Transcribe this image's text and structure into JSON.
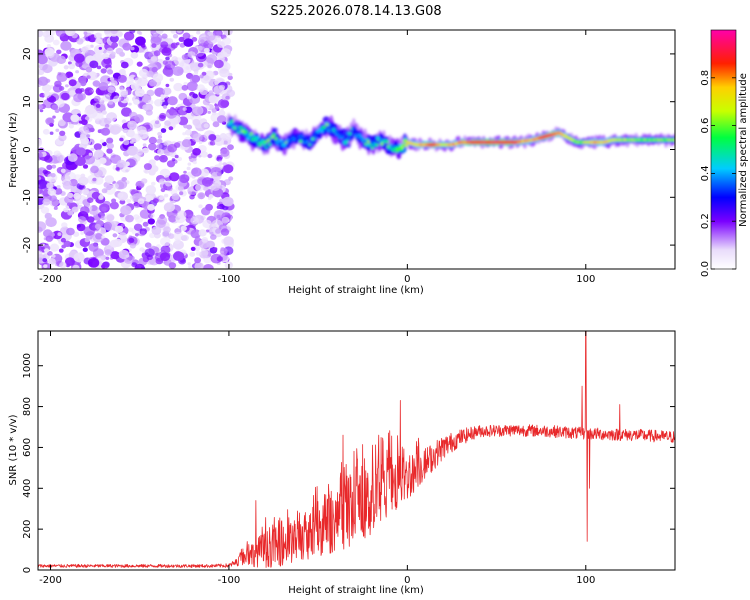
{
  "title": "S225.2026.078.14.13.G08",
  "chart_data": [
    {
      "type": "heatmap",
      "name": "spectrogram",
      "xlabel": "Height of straight line (km)",
      "ylabel": "Frequency (Hz)",
      "xlim": [
        -207,
        150
      ],
      "ylim": [
        -25,
        25
      ],
      "x_ticks": [
        -200,
        -100,
        0,
        100
      ],
      "y_ticks": [
        -20,
        -10,
        0,
        10,
        20
      ],
      "noise_region": [
        -207,
        -100
      ],
      "ridge": [
        {
          "x": -100,
          "f": 6.0,
          "a": 0.45
        },
        {
          "x": -95,
          "f": 4.5,
          "a": 0.5
        },
        {
          "x": -90,
          "f": 3.0,
          "a": 0.4
        },
        {
          "x": -85,
          "f": 2.0,
          "a": 0.45
        },
        {
          "x": -80,
          "f": 1.0,
          "a": 0.5
        },
        {
          "x": -75,
          "f": 2.5,
          "a": 0.35
        },
        {
          "x": -70,
          "f": 1.0,
          "a": 0.4
        },
        {
          "x": -65,
          "f": 2.0,
          "a": 0.3
        },
        {
          "x": -60,
          "f": 2.5,
          "a": 0.35
        },
        {
          "x": -55,
          "f": 1.5,
          "a": 0.3
        },
        {
          "x": -50,
          "f": 3.5,
          "a": 0.4
        },
        {
          "x": -45,
          "f": 5.0,
          "a": 0.35
        },
        {
          "x": -40,
          "f": 3.5,
          "a": 0.4
        },
        {
          "x": -35,
          "f": 2.0,
          "a": 0.35
        },
        {
          "x": -30,
          "f": 4.0,
          "a": 0.3
        },
        {
          "x": -25,
          "f": 2.0,
          "a": 0.4
        },
        {
          "x": -20,
          "f": 1.0,
          "a": 0.35
        },
        {
          "x": -15,
          "f": 2.0,
          "a": 0.45
        },
        {
          "x": -10,
          "f": 0.5,
          "a": 0.5
        },
        {
          "x": -5,
          "f": 0.0,
          "a": 0.55
        },
        {
          "x": 0,
          "f": 1.5,
          "a": 0.7
        },
        {
          "x": 5,
          "f": 1.0,
          "a": 0.75
        },
        {
          "x": 10,
          "f": 1.0,
          "a": 0.8
        },
        {
          "x": 15,
          "f": 1.0,
          "a": 0.85
        },
        {
          "x": 20,
          "f": 1.0,
          "a": 0.7
        },
        {
          "x": 25,
          "f": 1.0,
          "a": 0.75
        },
        {
          "x": 30,
          "f": 1.5,
          "a": 0.8
        },
        {
          "x": 40,
          "f": 1.5,
          "a": 0.9
        },
        {
          "x": 50,
          "f": 1.5,
          "a": 0.9
        },
        {
          "x": 60,
          "f": 1.5,
          "a": 0.85
        },
        {
          "x": 70,
          "f": 2.0,
          "a": 0.75
        },
        {
          "x": 75,
          "f": 2.5,
          "a": 0.85
        },
        {
          "x": 80,
          "f": 3.0,
          "a": 0.9
        },
        {
          "x": 85,
          "f": 3.5,
          "a": 0.8
        },
        {
          "x": 90,
          "f": 2.5,
          "a": 0.7
        },
        {
          "x": 95,
          "f": 1.5,
          "a": 0.6
        },
        {
          "x": 100,
          "f": 1.5,
          "a": 0.65
        },
        {
          "x": 105,
          "f": 1.5,
          "a": 0.8
        },
        {
          "x": 110,
          "f": 1.5,
          "a": 0.75
        },
        {
          "x": 115,
          "f": 2.0,
          "a": 0.7
        },
        {
          "x": 120,
          "f": 2.0,
          "a": 0.65
        },
        {
          "x": 130,
          "f": 2.0,
          "a": 0.6
        },
        {
          "x": 140,
          "f": 2.0,
          "a": 0.6
        },
        {
          "x": 150,
          "f": 2.0,
          "a": 0.6
        }
      ],
      "colorbar": {
        "label": "Normalized spectral amplitude",
        "range": [
          0,
          1
        ],
        "ticks": [
          "0.0",
          "0.2",
          "0.4",
          "0.6",
          "0.8"
        ],
        "tick_values": [
          0.0,
          0.2,
          0.4,
          0.6,
          0.8
        ]
      }
    },
    {
      "type": "line",
      "name": "snr",
      "xlabel": "Height of straight line (km)",
      "ylabel": "SNR (10 * v/v)",
      "xlim": [
        -207,
        150
      ],
      "ylim": [
        0,
        1170
      ],
      "x_ticks": [
        -200,
        -100,
        0,
        100
      ],
      "y_ticks": [
        0,
        200,
        400,
        600,
        800,
        1000
      ],
      "color": "#e8282a",
      "series": [
        {
          "name": "SNR",
          "envelope": [
            {
              "x": -207,
              "base": 20,
              "amp": 8
            },
            {
              "x": -110,
              "base": 20,
              "amp": 8
            },
            {
              "x": -100,
              "base": 22,
              "amp": 10
            },
            {
              "x": -95,
              "base": 40,
              "amp": 20
            },
            {
              "x": -90,
              "base": 70,
              "amp": 50
            },
            {
              "x": -80,
              "base": 100,
              "amp": 90
            },
            {
              "x": -70,
              "base": 120,
              "amp": 100
            },
            {
              "x": -60,
              "base": 150,
              "amp": 110
            },
            {
              "x": -50,
              "base": 190,
              "amp": 130
            },
            {
              "x": -40,
              "base": 240,
              "amp": 150
            },
            {
              "x": -30,
              "base": 280,
              "amp": 170
            },
            {
              "x": -20,
              "base": 340,
              "amp": 180
            },
            {
              "x": -10,
              "base": 400,
              "amp": 160
            },
            {
              "x": 0,
              "base": 450,
              "amp": 110
            },
            {
              "x": 10,
              "base": 520,
              "amp": 80
            },
            {
              "x": 20,
              "base": 600,
              "amp": 60
            },
            {
              "x": 30,
              "base": 650,
              "amp": 40
            },
            {
              "x": 40,
              "base": 680,
              "amp": 30
            },
            {
              "x": 60,
              "base": 685,
              "amp": 30
            },
            {
              "x": 80,
              "base": 680,
              "amp": 30
            },
            {
              "x": 95,
              "base": 670,
              "amp": 30
            },
            {
              "x": 110,
              "base": 665,
              "amp": 30
            },
            {
              "x": 130,
              "base": 660,
              "amp": 30
            },
            {
              "x": 150,
              "base": 650,
              "amp": 30
            }
          ],
          "spikes": [
            {
              "x": -85,
              "y": 340
            },
            {
              "x": -36,
              "y": 660
            },
            {
              "x": -16,
              "y": 660
            },
            {
              "x": -4,
              "y": 830
            },
            {
              "x": 98,
              "y": 900
            },
            {
              "x": 100,
              "y": 1170
            },
            {
              "x": 100.8,
              "y": 140
            },
            {
              "x": 102,
              "y": 400
            },
            {
              "x": 119,
              "y": 810
            }
          ]
        }
      ]
    }
  ]
}
